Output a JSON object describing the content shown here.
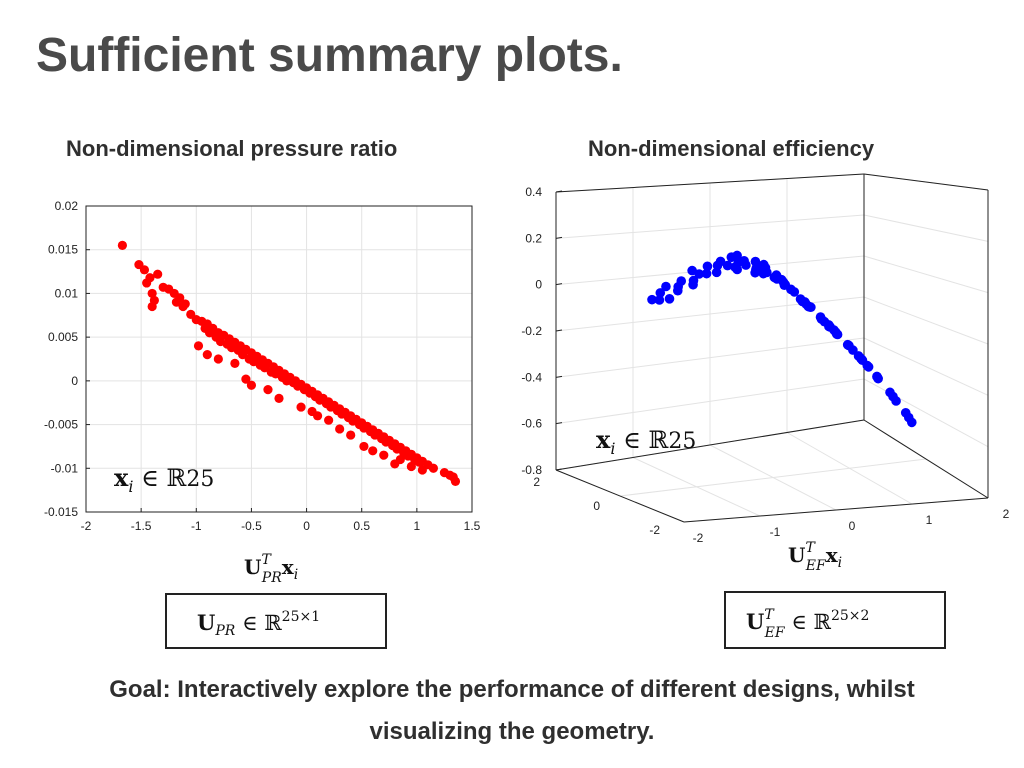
{
  "title": "Sufficient summary plots.",
  "footer": {
    "line1": "Goal: Interactively explore the performance of different designs, whilst",
    "line2": "visualizing the geometry."
  },
  "colors": {
    "left_points": "#ff0000",
    "right_points": "#0000ff"
  },
  "chart_data": [
    {
      "type": "scatter",
      "title": "Non-dimensional pressure ratio",
      "xlabel": "U_PR^T x_i",
      "ylabel": "",
      "xlim": [
        -2,
        1.5
      ],
      "ylim": [
        -0.015,
        0.02
      ],
      "grid": true,
      "x_ticks": [
        "-2",
        "-1.5",
        "-1",
        "-0.5",
        "0",
        "0.5",
        "1",
        "1.5"
      ],
      "y_ticks": [
        "-0.015",
        "-0.01",
        "-0.005",
        "0",
        "0.005",
        "0.01",
        "0.015",
        "0.02"
      ],
      "annotation": "x_i ∈ ℝ^25",
      "boxed_label": "U_PR ∈ ℝ^(25×1)",
      "series": [
        {
          "color": "#ff0000",
          "x": [
            -1.67,
            -1.52,
            -1.47,
            -1.45,
            -1.42,
            -1.4,
            -1.38,
            -1.35,
            -1.3,
            -1.25,
            -1.2,
            -1.18,
            -1.15,
            -1.12,
            -1.1,
            -1.05,
            -1.0,
            -0.95,
            -0.92,
            -0.9,
            -0.88,
            -0.85,
            -0.82,
            -0.8,
            -0.78,
            -0.75,
            -0.72,
            -0.7,
            -0.68,
            -0.65,
            -0.62,
            -0.6,
            -0.58,
            -0.55,
            -0.52,
            -0.5,
            -0.48,
            -0.45,
            -0.42,
            -0.4,
            -0.38,
            -0.35,
            -0.32,
            -0.3,
            -0.28,
            -0.25,
            -0.22,
            -0.2,
            -0.18,
            -0.15,
            -0.12,
            -0.1,
            -0.08,
            -0.05,
            -0.02,
            0.0,
            0.03,
            0.05,
            0.08,
            0.1,
            0.12,
            0.15,
            0.18,
            0.2,
            0.22,
            0.25,
            0.28,
            0.3,
            0.32,
            0.35,
            0.38,
            0.4,
            0.42,
            0.45,
            0.48,
            0.5,
            0.52,
            0.55,
            0.58,
            0.6,
            0.62,
            0.65,
            0.68,
            0.7,
            0.72,
            0.75,
            0.78,
            0.8,
            0.82,
            0.85,
            0.88,
            0.9,
            0.92,
            0.95,
            0.98,
            1.0,
            1.02,
            1.05,
            1.1,
            1.15,
            1.25,
            1.3,
            1.33,
            1.35,
            -0.98,
            -0.9,
            -0.8,
            -0.55,
            -0.5,
            -0.35,
            -0.25,
            -0.05,
            0.05,
            0.2,
            0.3,
            0.4,
            0.52,
            0.7,
            0.85,
            0.95,
            1.05,
            -1.4,
            -0.65,
            0.1,
            0.6,
            0.8
          ],
          "y": [
            0.0155,
            0.0133,
            0.0127,
            0.0112,
            0.0118,
            0.01,
            0.0092,
            0.0122,
            0.0107,
            0.0105,
            0.01,
            0.009,
            0.0095,
            0.0085,
            0.0088,
            0.0076,
            0.007,
            0.0068,
            0.006,
            0.0065,
            0.0055,
            0.006,
            0.005,
            0.0055,
            0.0045,
            0.0052,
            0.0042,
            0.0048,
            0.0038,
            0.0044,
            0.0035,
            0.004,
            0.003,
            0.0036,
            0.0025,
            0.0032,
            0.0022,
            0.0028,
            0.0018,
            0.0024,
            0.0015,
            0.002,
            0.001,
            0.0016,
            0.0008,
            0.0012,
            0.0004,
            0.0008,
            0.0,
            0.0004,
            -0.0002,
            0.0,
            -0.0006,
            -0.0004,
            -0.001,
            -0.0008,
            -0.0014,
            -0.0012,
            -0.0018,
            -0.0016,
            -0.0022,
            -0.002,
            -0.0026,
            -0.0024,
            -0.003,
            -0.0028,
            -0.0034,
            -0.0032,
            -0.0038,
            -0.0036,
            -0.0042,
            -0.004,
            -0.0046,
            -0.0044,
            -0.005,
            -0.0048,
            -0.0054,
            -0.0052,
            -0.0058,
            -0.0056,
            -0.0062,
            -0.006,
            -0.0066,
            -0.0064,
            -0.007,
            -0.0068,
            -0.0074,
            -0.0072,
            -0.0078,
            -0.0076,
            -0.0082,
            -0.008,
            -0.0086,
            -0.0084,
            -0.009,
            -0.0088,
            -0.0093,
            -0.0092,
            -0.0096,
            -0.01,
            -0.0105,
            -0.0108,
            -0.011,
            -0.0115,
            0.004,
            0.003,
            0.0025,
            0.0002,
            -0.0005,
            -0.001,
            -0.002,
            -0.003,
            -0.0035,
            -0.0045,
            -0.0055,
            -0.0062,
            -0.0075,
            -0.0085,
            -0.009,
            -0.0098,
            -0.0102,
            0.0085,
            0.002,
            -0.004,
            -0.008,
            -0.0095
          ]
        }
      ]
    },
    {
      "type": "scatter",
      "title": "Non-dimensional efficiency",
      "xlabel": "U_EF^T x_i",
      "ylabel": "",
      "zlim": [
        -0.8,
        0.4
      ],
      "grid": true,
      "x_ticks": [
        "-2",
        "-1",
        "0",
        "1",
        "2"
      ],
      "y_ticks": [
        "2",
        "0",
        "-2"
      ],
      "z_ticks": [
        "0.4",
        "0.2",
        "0",
        "-0.2",
        "-0.4",
        "-0.6",
        "-0.8"
      ],
      "annotation": "x_i ∈ ℝ^25",
      "boxed_label": "U_EF^T ∈ ℝ^(25×2)",
      "series": [
        {
          "color": "#0000ff",
          "s": [
            0.0,
            0.02,
            0.04,
            0.05,
            0.07,
            0.09,
            0.1,
            0.12,
            0.14,
            0.15,
            0.17,
            0.18,
            0.2,
            0.22,
            0.23,
            0.25,
            0.27,
            0.28,
            0.3,
            0.32,
            0.33,
            0.35,
            0.36,
            0.38,
            0.4,
            0.41,
            0.43,
            0.45,
            0.46,
            0.48,
            0.5,
            0.51,
            0.53,
            0.55,
            0.56,
            0.58,
            0.6,
            0.61,
            0.63,
            0.65,
            0.66,
            0.68,
            0.7,
            0.71,
            0.73,
            0.75,
            0.76,
            0.78,
            0.8,
            0.81,
            0.83,
            0.85,
            0.86,
            0.88,
            0.9,
            0.92,
            0.94,
            0.96,
            0.98,
            1.0,
            0.3,
            0.35,
            0.4,
            0.42,
            0.45,
            0.5,
            0.55,
            0.6,
            0.65,
            0.7,
            0.75,
            0.32,
            0.38,
            0.44,
            0.48,
            0.52,
            0.58,
            0.62,
            0.68,
            0.72,
            0.78,
            0.82,
            0.36,
            0.46,
            0.54,
            0.64
          ],
          "d": [
            0,
            1,
            -1,
            2,
            -2,
            1,
            0,
            -1,
            2,
            1,
            -2,
            0,
            1,
            -1,
            2,
            0,
            -1,
            1,
            2,
            -2,
            0,
            1,
            -1,
            2,
            0,
            -1,
            1,
            -2,
            2,
            0,
            1,
            -1,
            0,
            2,
            -2,
            1,
            0,
            -1,
            2,
            1,
            -2,
            0,
            1,
            -1,
            2,
            0,
            -1,
            1,
            0,
            2,
            -1,
            1,
            0,
            -2,
            1,
            0,
            -1,
            1,
            0,
            -1,
            3,
            -3,
            3,
            -3,
            2,
            -3,
            3,
            -2,
            3,
            -3,
            2,
            -2,
            2,
            -2,
            3,
            -3,
            2,
            -2,
            3,
            -3,
            2,
            -2,
            4,
            -4,
            4,
            -4
          ]
        }
      ]
    }
  ]
}
